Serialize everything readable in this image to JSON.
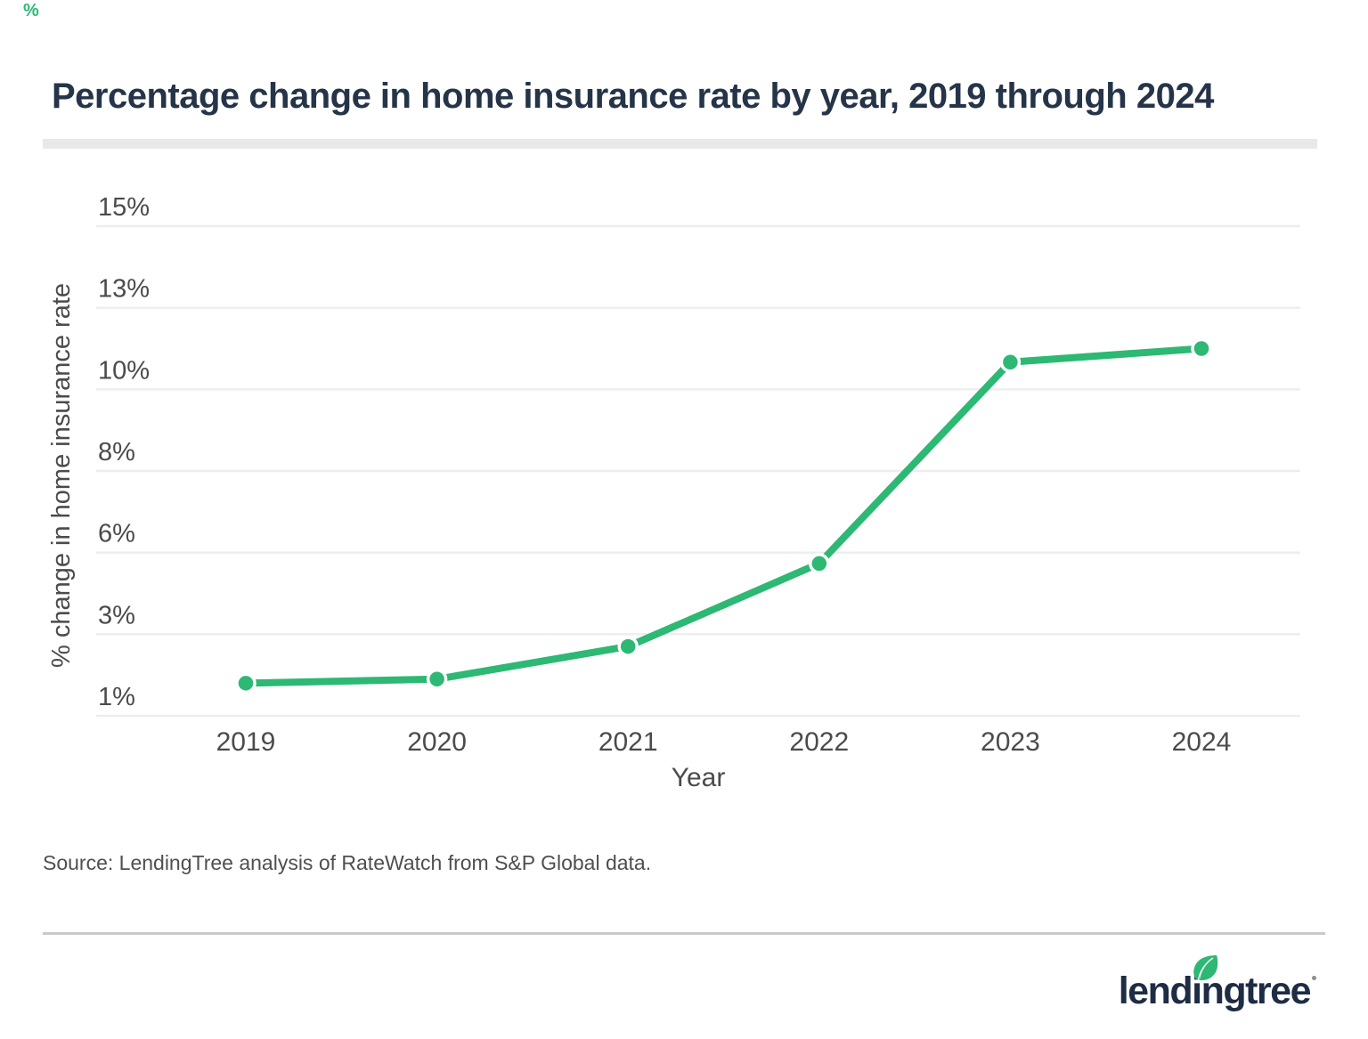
{
  "page": {
    "corner_mark": "%",
    "title": "Percentage change in home insurance rate by year, 2019 through 2024",
    "source": "Source: LendingTree analysis of RateWatch from S&P Global data.",
    "logo_text": "lendingtree",
    "colors": {
      "accent_green": "#2db873",
      "navy": "#253448",
      "gridline": "#ededed",
      "axis_text": "#4b4b4b",
      "title_bar": "#e8e8e8",
      "divider": "#c9c9c9"
    }
  },
  "chart_data": {
    "type": "line",
    "title": "Percentage change in home insurance rate by year, 2019 through 2024",
    "categories": [
      "2019",
      "2020",
      "2021",
      "2022",
      "2023",
      "2024"
    ],
    "series": [
      {
        "name": "% change in home insurance rate",
        "values": [
          1.8,
          1.9,
          2.7,
          5.6,
          11.0,
          11.5
        ]
      }
    ],
    "xlabel": "Year",
    "ylabel": "% change in home insurance rate",
    "y_tick_labels": [
      "15%",
      "13%",
      "10%",
      "8%",
      "6%",
      "3%",
      "1%"
    ],
    "y_tick_values": [
      15,
      13,
      10,
      8,
      6,
      3,
      1
    ],
    "ylim": [
      1,
      15
    ],
    "grid": "horizontal-only",
    "legend": "none",
    "line_color": "#2db873",
    "marker": "circle"
  }
}
